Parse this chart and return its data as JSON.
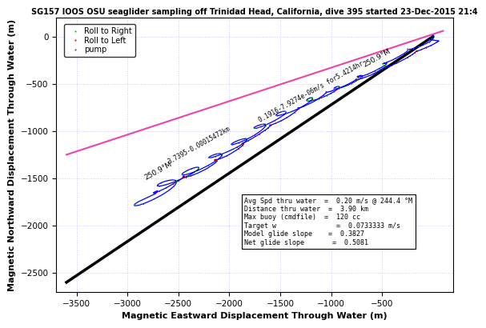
{
  "title": "SG157 IOOS OSU seaglider sampling off Trinidad Head, California, dive 395 started 23-Dec-2015 21:4",
  "xlabel": "Magnetic Eastward Displacement Through Water (m)",
  "ylabel": "Magnetic Northward Displacement Through Water (m)",
  "xlim": [
    -3700,
    200
  ],
  "ylim": [
    -2700,
    200
  ],
  "xticks": [
    -3500,
    -3000,
    -2500,
    -2000,
    -1500,
    -1000,
    -500
  ],
  "yticks": [
    -2500,
    -2000,
    -1500,
    -1000,
    -500,
    0
  ],
  "annotation_text": "Avg Spd thru water  =  0.20 m/s @ 244.4 °M\nDistance thru water  =  3.90 km\nMax buoy (cmdfile)  =  120 cc\nTarget w               =  0.0733333 m/s\nModel glide slope    =  0.3827\nNet glide slope       =  0.5081",
  "eq_label_climb": "0.1916-7.9274e-06m/s for5.4214hr",
  "eq_label_dive": "3.7395-0.00015472km",
  "bearing_label": "250.9°M",
  "bg_color": "#ffffff",
  "grid_color": "#c8c8ff",
  "roll_right_color": "#00bb00",
  "roll_left_color": "#cc0000",
  "pump_color": "#444444",
  "model_line_color": "#ee44aa",
  "net_line_color": "#000000",
  "title_fontsize": 7,
  "axis_fontsize": 8,
  "model_line_x0": -3600,
  "model_line_y0": -1250,
  "model_line_x1": 100,
  "model_line_y1": 60,
  "net_line_x0": -3600,
  "net_line_y0": -2600,
  "net_line_x1": 0,
  "net_line_y1": 0
}
